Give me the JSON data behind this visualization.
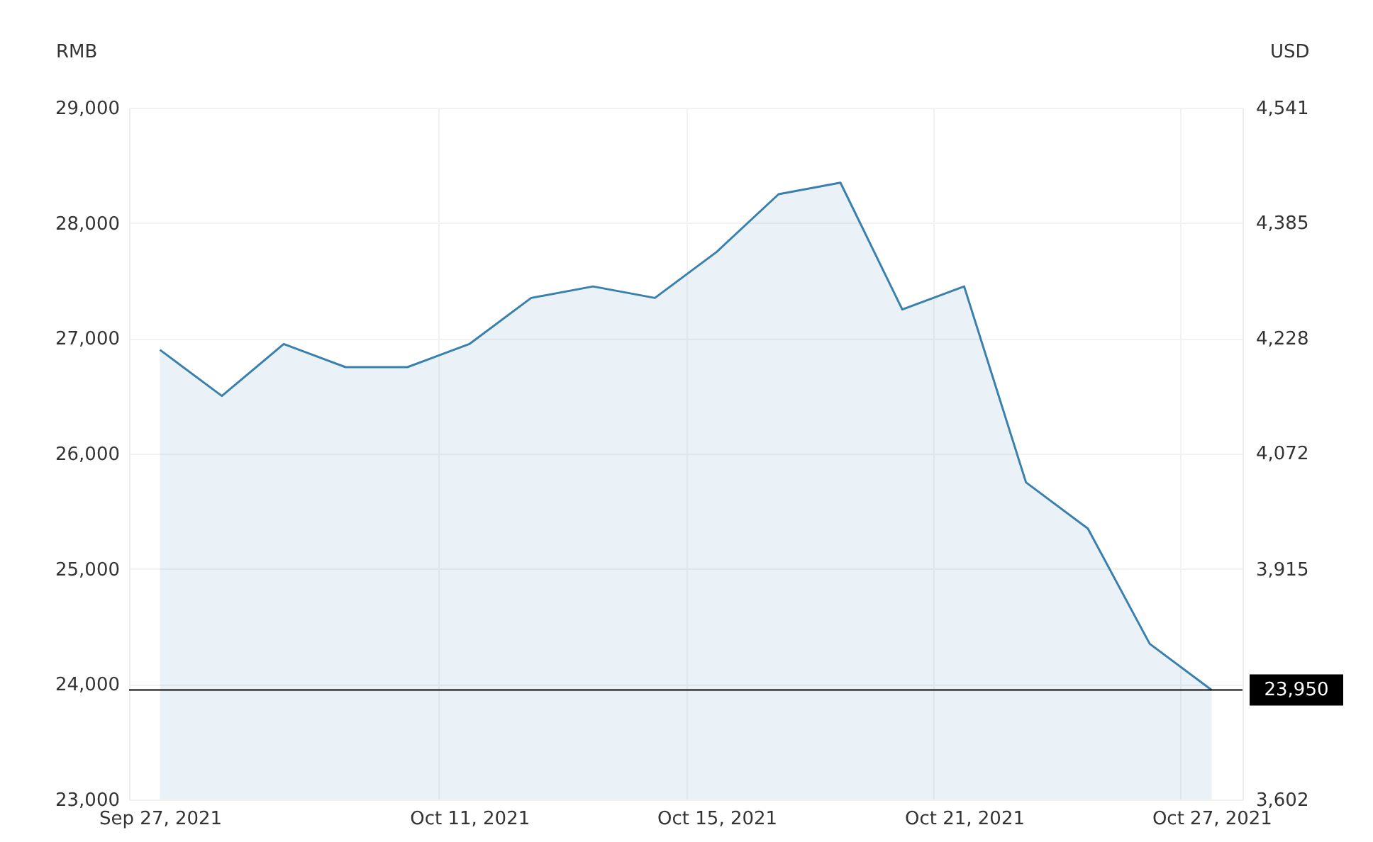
{
  "chart_data": {
    "type": "area",
    "ylabel": "RMB",
    "y2label": "USD",
    "categories": [
      "Sep 27, 2021",
      null,
      null,
      null,
      null,
      "Oct 11, 2021",
      null,
      null,
      null,
      "Oct 15, 2021",
      null,
      null,
      null,
      "Oct 21, 2021",
      null,
      null,
      null,
      "Oct 27, 2021"
    ],
    "series": [
      {
        "color": "#3a80ad",
        "values": [
          26900,
          26500,
          26950,
          26750,
          26750,
          26950,
          27350,
          27450,
          27350,
          27750,
          28250,
          28350,
          27250,
          27450,
          25750,
          25350,
          24350,
          23950
        ]
      }
    ],
    "ylim": [
      23000,
      29000
    ],
    "yticks": [
      {
        "value": 23000,
        "label": "23,000"
      },
      {
        "value": 24000,
        "label": "24,000"
      },
      {
        "value": 25000,
        "label": "25,000"
      },
      {
        "value": 26000,
        "label": "26,000"
      },
      {
        "value": 27000,
        "label": "27,000"
      },
      {
        "value": 28000,
        "label": "28,000"
      },
      {
        "value": 29000,
        "label": "29,000"
      }
    ],
    "y2lim": [
      3602,
      4541
    ],
    "y2ticks": [
      {
        "value": 3602,
        "label": "3,602"
      },
      {
        "value": 3915,
        "label": "3,915"
      },
      {
        "value": 4072,
        "label": "4,072"
      },
      {
        "value": 4228,
        "label": "4,228"
      },
      {
        "value": 4385,
        "label": "4,385"
      },
      {
        "value": 4541,
        "label": "4,541"
      }
    ],
    "ref_lines": [
      {
        "axis": "y",
        "value": 23950,
        "label": "23,950",
        "color": "#000000"
      }
    ],
    "grid": true
  }
}
